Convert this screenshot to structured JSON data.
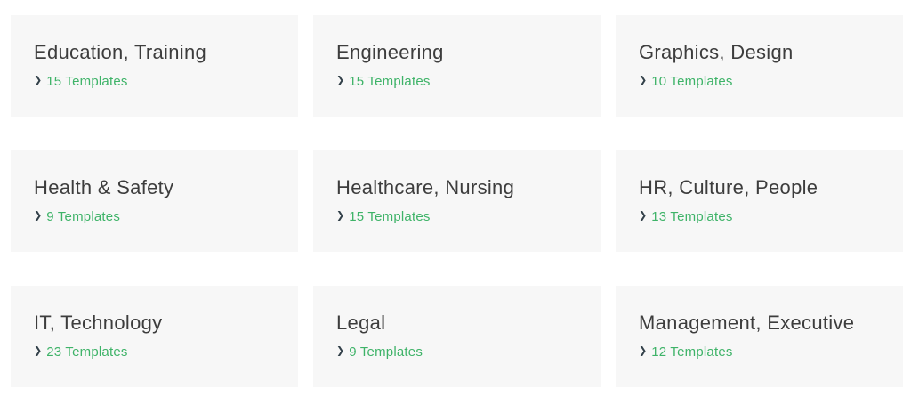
{
  "colors": {
    "page_background": "#ffffff",
    "card_background": "#f7f7f7",
    "title_text": "#3d3d3d",
    "link_green": "#3eb368",
    "chevron_dark": "#33414a"
  },
  "icons": {
    "chevron_right": "❯"
  },
  "cards": [
    {
      "title": "Education, Training",
      "count_label": "15 Templates"
    },
    {
      "title": "Engineering",
      "count_label": "15 Templates"
    },
    {
      "title": "Graphics, Design",
      "count_label": "10 Templates"
    },
    {
      "title": "Health & Safety",
      "count_label": "9 Templates"
    },
    {
      "title": "Healthcare, Nursing",
      "count_label": "15 Templates"
    },
    {
      "title": "HR, Culture, People",
      "count_label": "13 Templates"
    },
    {
      "title": "IT, Technology",
      "count_label": "23 Templates"
    },
    {
      "title": "Legal",
      "count_label": "9 Templates"
    },
    {
      "title": "Management, Executive",
      "count_label": "12 Templates"
    }
  ]
}
